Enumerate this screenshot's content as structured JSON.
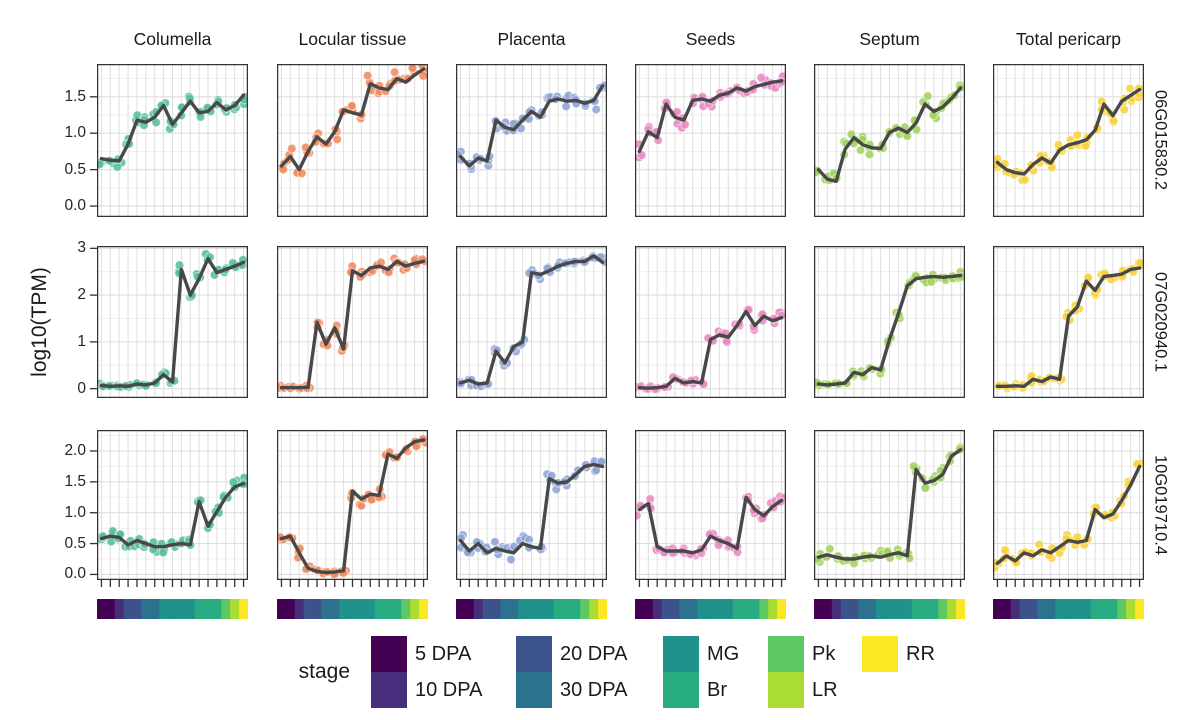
{
  "chart_data": {
    "type": "line",
    "description": "Faceted scatter+mean-line plot of gene expression (log10 TPM) across fruit developmental stages, per tissue (columns) and gene (rows). Below each column a color strip encodes the stage of each x position.",
    "ylabel": "log10(TPM)",
    "legend_title": "stage",
    "facet_columns": [
      "Columella",
      "Locular tissue",
      "Placenta",
      "Seeds",
      "Septum",
      "Total pericarp"
    ],
    "facet_rows": [
      "06G015830.2",
      "07G020940.1",
      "10G019710.4"
    ],
    "tissue_point_colors": [
      "#57bd9b",
      "#f08a5e",
      "#8ea4d5",
      "#e78ac3",
      "#a2d162",
      "#f7d23d"
    ],
    "line_color": "#484848",
    "panel_border_color": "#333333",
    "grid": true,
    "grid_major_color": "#dedede",
    "grid_minor_color": "#efefef",
    "x_positions": 17,
    "replicates_per_stage": 3,
    "stage_of_position": [
      0,
      0,
      1,
      2,
      2,
      3,
      3,
      4,
      4,
      4,
      4,
      5,
      5,
      5,
      6,
      7,
      8
    ],
    "stages": [
      {
        "label": "5 DPA",
        "color": "#440154"
      },
      {
        "label": "10 DPA",
        "color": "#472d7b"
      },
      {
        "label": "20 DPA",
        "color": "#3b528b"
      },
      {
        "label": "30 DPA",
        "color": "#2c728e"
      },
      {
        "label": "MG",
        "color": "#21918c"
      },
      {
        "label": "Br",
        "color": "#27ad81"
      },
      {
        "label": "Pk",
        "color": "#5ec962"
      },
      {
        "label": "LR",
        "color": "#aadc32"
      },
      {
        "label": "RR",
        "color": "#fde725"
      }
    ],
    "rows": [
      {
        "label": "06G015830.2",
        "ylim": [
          -0.15,
          1.95
        ],
        "ytick_labels": [
          "0.0",
          "0.5",
          "1.0",
          "1.5"
        ],
        "ytick_values": [
          0,
          0.5,
          1.0,
          1.5
        ],
        "minor_ticks": [
          0.25,
          0.75,
          1.25,
          1.75
        ],
        "series": [
          [
            0.65,
            0.63,
            0.62,
            0.85,
            1.18,
            1.15,
            1.22,
            1.38,
            1.12,
            1.28,
            1.44,
            1.28,
            1.3,
            1.42,
            1.32,
            1.38,
            1.52
          ],
          [
            0.55,
            0.68,
            0.5,
            0.75,
            0.95,
            0.85,
            1.02,
            1.32,
            1.28,
            1.25,
            1.68,
            1.62,
            1.6,
            1.75,
            1.7,
            1.8,
            1.88
          ],
          [
            0.68,
            0.55,
            0.66,
            0.62,
            1.18,
            1.08,
            1.05,
            1.18,
            1.3,
            1.22,
            1.44,
            1.47,
            1.44,
            1.45,
            1.41,
            1.45,
            1.65
          ],
          [
            0.75,
            1.02,
            0.94,
            1.4,
            1.22,
            1.18,
            1.45,
            1.47,
            1.44,
            1.52,
            1.55,
            1.62,
            1.58,
            1.64,
            1.67,
            1.7,
            1.72
          ],
          [
            0.5,
            0.37,
            0.34,
            0.78,
            0.94,
            0.84,
            0.8,
            0.79,
            1.01,
            1.07,
            1.01,
            1.14,
            1.4,
            1.3,
            1.36,
            1.48,
            1.62
          ],
          [
            0.6,
            0.5,
            0.46,
            0.44,
            0.57,
            0.66,
            0.59,
            0.77,
            0.84,
            0.87,
            0.91,
            1.04,
            1.4,
            1.24,
            1.44,
            1.52,
            1.6
          ]
        ]
      },
      {
        "label": "07G020940.1",
        "ylim": [
          -0.2,
          3.05
        ],
        "ytick_labels": [
          "0",
          "1",
          "2",
          "3"
        ],
        "ytick_values": [
          0,
          1,
          2,
          3
        ],
        "minor_ticks": [
          0.5,
          1.5,
          2.5
        ],
        "series": [
          [
            0.07,
            0.05,
            0.06,
            0.05,
            0.1,
            0.08,
            0.12,
            0.3,
            0.14,
            2.55,
            2.0,
            2.35,
            2.78,
            2.48,
            2.55,
            2.62,
            2.7
          ],
          [
            0.02,
            0.02,
            0.02,
            0.03,
            1.42,
            0.95,
            1.3,
            0.85,
            2.52,
            2.42,
            2.58,
            2.62,
            2.55,
            2.72,
            2.62,
            2.68,
            2.72
          ],
          [
            0.12,
            0.18,
            0.1,
            0.12,
            0.8,
            0.55,
            0.9,
            1.0,
            2.48,
            2.44,
            2.52,
            2.62,
            2.68,
            2.72,
            2.72,
            2.84,
            2.7
          ],
          [
            0.02,
            0.01,
            0.02,
            0.05,
            0.22,
            0.12,
            0.15,
            0.12,
            1.05,
            1.15,
            1.1,
            1.35,
            1.65,
            1.35,
            1.55,
            1.45,
            1.52
          ],
          [
            0.1,
            0.08,
            0.1,
            0.12,
            0.35,
            0.3,
            0.45,
            0.4,
            1.05,
            1.6,
            2.2,
            2.35,
            2.38,
            2.4,
            2.38,
            2.4,
            2.42
          ],
          [
            0.05,
            0.05,
            0.06,
            0.05,
            0.2,
            0.15,
            0.25,
            0.2,
            1.55,
            1.75,
            2.3,
            2.1,
            2.4,
            2.42,
            2.45,
            2.55,
            2.58
          ]
        ]
      },
      {
        "label": "10G019710.4",
        "ylim": [
          -0.09,
          2.34
        ],
        "ytick_labels": [
          "0.0",
          "0.5",
          "1.0",
          "1.5",
          "2.0"
        ],
        "ytick_values": [
          0,
          0.5,
          1.0,
          1.5,
          2.0
        ],
        "minor_ticks": [
          0.25,
          0.75,
          1.25,
          1.75,
          2.25
        ],
        "series": [
          [
            0.58,
            0.62,
            0.6,
            0.48,
            0.55,
            0.5,
            0.45,
            0.45,
            0.48,
            0.5,
            0.48,
            1.18,
            0.78,
            1.02,
            1.25,
            1.42,
            1.47
          ],
          [
            0.58,
            0.62,
            0.35,
            0.1,
            0.05,
            0.03,
            0.04,
            0.06,
            1.35,
            1.22,
            1.3,
            1.28,
            1.95,
            1.88,
            2.05,
            2.15,
            2.18
          ],
          [
            0.55,
            0.38,
            0.5,
            0.35,
            0.42,
            0.38,
            0.35,
            0.5,
            0.45,
            0.42,
            1.55,
            1.48,
            1.5,
            1.62,
            1.75,
            1.78,
            1.75
          ],
          [
            1.05,
            1.15,
            0.45,
            0.38,
            0.38,
            0.38,
            0.35,
            0.4,
            0.62,
            0.55,
            0.5,
            0.42,
            1.25,
            1.05,
            0.95,
            1.1,
            1.2
          ],
          [
            0.28,
            0.32,
            0.28,
            0.25,
            0.25,
            0.28,
            0.3,
            0.28,
            0.32,
            0.35,
            0.3,
            1.7,
            1.48,
            1.52,
            1.62,
            1.92,
            2.02
          ],
          [
            0.18,
            0.3,
            0.22,
            0.35,
            0.3,
            0.4,
            0.35,
            0.45,
            0.55,
            0.52,
            0.55,
            1.05,
            0.92,
            0.98,
            1.2,
            1.45,
            1.75
          ]
        ]
      }
    ]
  }
}
